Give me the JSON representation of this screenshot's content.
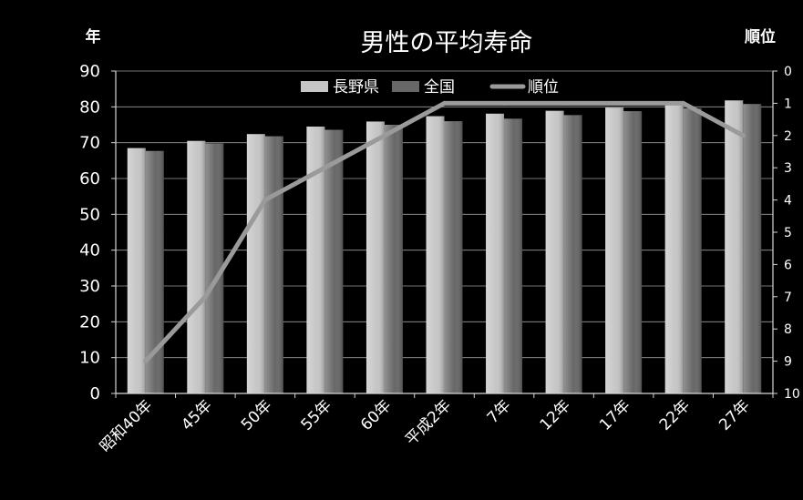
{
  "page": {
    "background": "#000000"
  },
  "chart_data": {
    "type": "bar",
    "title": "男性の平均寿命",
    "ylabel": "年",
    "y2label": "順位",
    "categories": [
      "昭和40年",
      "45年",
      "50年",
      "55年",
      "60年",
      "平成2年",
      "7年",
      "12年",
      "17年",
      "22年",
      "27年"
    ],
    "series": [
      {
        "name": "長野県",
        "type": "bar",
        "axis": "left",
        "color": "#c6c6c6",
        "values": [
          68.5,
          70.5,
          72.4,
          74.5,
          75.9,
          77.4,
          78.1,
          78.9,
          79.8,
          80.9,
          81.8
        ]
      },
      {
        "name": "全国",
        "type": "bar",
        "axis": "left",
        "color": "#676767",
        "values": [
          67.7,
          69.8,
          71.8,
          73.6,
          75.0,
          76.0,
          76.7,
          77.7,
          78.8,
          79.6,
          80.8
        ]
      },
      {
        "name": "順位",
        "type": "line",
        "axis": "right",
        "color": "#9a9a9a",
        "values": [
          9,
          7,
          4,
          3,
          2,
          1,
          1,
          1,
          1,
          1,
          2
        ]
      }
    ],
    "ylim": [
      0,
      90
    ],
    "yticks": [
      0,
      10,
      20,
      30,
      40,
      50,
      60,
      70,
      80,
      90
    ],
    "y2lim": [
      0,
      10
    ],
    "y2_inverted": true,
    "y2ticks": [
      0,
      1,
      2,
      3,
      4,
      5,
      6,
      7,
      8,
      9,
      10
    ],
    "grid": true,
    "legend": "top-center"
  }
}
